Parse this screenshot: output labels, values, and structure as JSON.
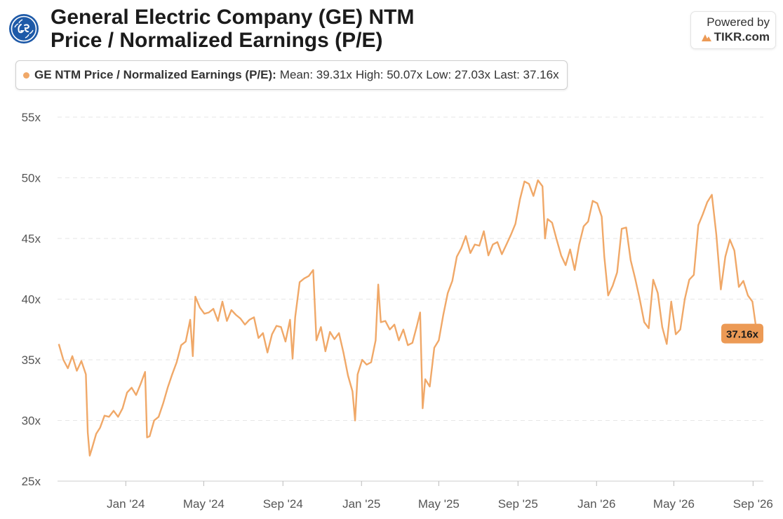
{
  "header": {
    "title_line1": "General Electric Company (GE) NTM",
    "title_line2": "Price / Normalized Earnings (P/E)",
    "powered_by": "Powered by",
    "brand": "TIKR.com"
  },
  "legend": {
    "series_name": "GE NTM Price / Normalized Earnings (P/E):",
    "mean": "Mean: 39.31x",
    "high": "High: 50.07x",
    "low": "Low: 27.03x",
    "last": "Last: 37.16x"
  },
  "colors": {
    "series": "#f0a868",
    "last_badge": "#ec9a55",
    "grid": "#e6e6e6"
  },
  "chart_data": {
    "type": "line",
    "title": "General Electric Company (GE) NTM Price / Normalized Earnings (P/E)",
    "ylim": [
      25,
      55
    ],
    "y_ticks": [
      "25x",
      "30x",
      "35x",
      "40x",
      "45x",
      "50x",
      "55x"
    ],
    "x_ticks": [
      "Jan '24",
      "May '24",
      "Sep '24",
      "Jan '25",
      "May '25",
      "Sep '25",
      "Jan '26",
      "May '26",
      "Sep '26"
    ],
    "x_tick_dates": [
      "2024-01-01",
      "2024-05-01",
      "2024-09-01",
      "2025-01-01",
      "2025-05-01",
      "2025-09-01",
      "2026-01-01",
      "2026-05-01",
      "2026-09-01"
    ],
    "grid": true,
    "last_label": "37.16x",
    "series": [
      {
        "name": "GE NTM Price / Normalized Earnings (P/E)",
        "points": [
          [
            "2023-09-19",
            36.3
          ],
          [
            "2023-09-26",
            35.0
          ],
          [
            "2023-10-03",
            34.3
          ],
          [
            "2023-10-10",
            35.3
          ],
          [
            "2023-10-17",
            34.1
          ],
          [
            "2023-10-24",
            34.9
          ],
          [
            "2023-10-31",
            33.8
          ],
          [
            "2023-11-03",
            29.0
          ],
          [
            "2023-11-06",
            27.1
          ],
          [
            "2023-11-09",
            27.6
          ],
          [
            "2023-11-16",
            28.9
          ],
          [
            "2023-11-22",
            29.4
          ],
          [
            "2023-11-29",
            30.4
          ],
          [
            "2023-12-06",
            30.3
          ],
          [
            "2023-12-13",
            30.8
          ],
          [
            "2023-12-20",
            30.3
          ],
          [
            "2023-12-27",
            31.0
          ],
          [
            "2024-01-03",
            32.3
          ],
          [
            "2024-01-10",
            32.7
          ],
          [
            "2024-01-17",
            32.1
          ],
          [
            "2024-01-24",
            33.0
          ],
          [
            "2024-01-31",
            34.0
          ],
          [
            "2024-02-03",
            28.6
          ],
          [
            "2024-02-07",
            28.7
          ],
          [
            "2024-02-14",
            30.0
          ],
          [
            "2024-02-21",
            30.3
          ],
          [
            "2024-02-28",
            31.4
          ],
          [
            "2024-03-06",
            32.7
          ],
          [
            "2024-03-13",
            33.8
          ],
          [
            "2024-03-20",
            34.8
          ],
          [
            "2024-03-27",
            36.2
          ],
          [
            "2024-04-03",
            36.5
          ],
          [
            "2024-04-10",
            38.3
          ],
          [
            "2024-04-14",
            35.3
          ],
          [
            "2024-04-18",
            40.2
          ],
          [
            "2024-04-25",
            39.3
          ],
          [
            "2024-05-02",
            38.8
          ],
          [
            "2024-05-09",
            38.9
          ],
          [
            "2024-05-16",
            39.2
          ],
          [
            "2024-05-23",
            38.2
          ],
          [
            "2024-05-30",
            39.8
          ],
          [
            "2024-06-06",
            38.2
          ],
          [
            "2024-06-13",
            39.1
          ],
          [
            "2024-06-20",
            38.7
          ],
          [
            "2024-06-27",
            38.4
          ],
          [
            "2024-07-04",
            37.9
          ],
          [
            "2024-07-11",
            38.3
          ],
          [
            "2024-07-18",
            38.5
          ],
          [
            "2024-07-25",
            36.8
          ],
          [
            "2024-08-01",
            37.2
          ],
          [
            "2024-08-08",
            35.6
          ],
          [
            "2024-08-15",
            37.1
          ],
          [
            "2024-08-22",
            37.8
          ],
          [
            "2024-08-29",
            37.7
          ],
          [
            "2024-09-05",
            36.5
          ],
          [
            "2024-09-12",
            38.3
          ],
          [
            "2024-09-16",
            35.1
          ],
          [
            "2024-09-20",
            38.5
          ],
          [
            "2024-09-27",
            41.4
          ],
          [
            "2024-10-04",
            41.7
          ],
          [
            "2024-10-11",
            41.9
          ],
          [
            "2024-10-18",
            42.4
          ],
          [
            "2024-10-23",
            36.6
          ],
          [
            "2024-10-30",
            37.7
          ],
          [
            "2024-11-06",
            35.7
          ],
          [
            "2024-11-13",
            37.3
          ],
          [
            "2024-11-20",
            36.7
          ],
          [
            "2024-11-27",
            37.2
          ],
          [
            "2024-12-04",
            35.6
          ],
          [
            "2024-12-11",
            33.7
          ],
          [
            "2024-12-18",
            32.4
          ],
          [
            "2024-12-22",
            30.0
          ],
          [
            "2024-12-26",
            33.8
          ],
          [
            "2025-01-02",
            35.0
          ],
          [
            "2025-01-09",
            34.6
          ],
          [
            "2025-01-16",
            34.8
          ],
          [
            "2025-01-23",
            36.6
          ],
          [
            "2025-01-27",
            41.2
          ],
          [
            "2025-01-31",
            38.1
          ],
          [
            "2025-02-07",
            38.2
          ],
          [
            "2025-02-14",
            37.5
          ],
          [
            "2025-02-21",
            37.9
          ],
          [
            "2025-02-28",
            36.6
          ],
          [
            "2025-03-07",
            37.5
          ],
          [
            "2025-03-14",
            36.2
          ],
          [
            "2025-03-21",
            36.4
          ],
          [
            "2025-03-28",
            37.8
          ],
          [
            "2025-04-02",
            38.9
          ],
          [
            "2025-04-06",
            31.0
          ],
          [
            "2025-04-10",
            33.4
          ],
          [
            "2025-04-17",
            32.8
          ],
          [
            "2025-04-24",
            36.0
          ],
          [
            "2025-05-01",
            36.6
          ],
          [
            "2025-05-08",
            38.7
          ],
          [
            "2025-05-15",
            40.5
          ],
          [
            "2025-05-22",
            41.5
          ],
          [
            "2025-05-29",
            43.5
          ],
          [
            "2025-06-05",
            44.2
          ],
          [
            "2025-06-12",
            45.2
          ],
          [
            "2025-06-19",
            43.8
          ],
          [
            "2025-06-26",
            44.5
          ],
          [
            "2025-07-03",
            44.4
          ],
          [
            "2025-07-10",
            45.6
          ],
          [
            "2025-07-17",
            43.6
          ],
          [
            "2025-07-24",
            44.5
          ],
          [
            "2025-07-31",
            44.7
          ],
          [
            "2025-08-07",
            43.7
          ],
          [
            "2025-08-14",
            44.5
          ],
          [
            "2025-08-21",
            45.3
          ],
          [
            "2025-08-28",
            46.2
          ],
          [
            "2025-09-04",
            48.2
          ],
          [
            "2025-09-11",
            49.7
          ],
          [
            "2025-09-18",
            49.5
          ],
          [
            "2025-09-25",
            48.5
          ],
          [
            "2025-10-02",
            49.8
          ],
          [
            "2025-10-09",
            49.3
          ],
          [
            "2025-10-13",
            45.0
          ],
          [
            "2025-10-17",
            46.6
          ],
          [
            "2025-10-24",
            46.3
          ],
          [
            "2025-10-31",
            44.9
          ],
          [
            "2025-11-07",
            43.6
          ],
          [
            "2025-11-14",
            42.8
          ],
          [
            "2025-11-21",
            44.1
          ],
          [
            "2025-11-28",
            42.4
          ],
          [
            "2025-12-05",
            44.5
          ],
          [
            "2025-12-12",
            46.0
          ],
          [
            "2025-12-19",
            46.4
          ],
          [
            "2025-12-26",
            48.1
          ],
          [
            "2026-01-02",
            47.9
          ],
          [
            "2026-01-09",
            46.8
          ],
          [
            "2026-01-13",
            43.5
          ],
          [
            "2026-01-19",
            40.3
          ],
          [
            "2026-01-26",
            41.1
          ],
          [
            "2026-02-02",
            42.2
          ],
          [
            "2026-02-09",
            45.8
          ],
          [
            "2026-02-16",
            45.9
          ],
          [
            "2026-02-23",
            43.2
          ],
          [
            "2026-03-02",
            41.7
          ],
          [
            "2026-03-09",
            40.0
          ],
          [
            "2026-03-16",
            38.1
          ],
          [
            "2026-03-23",
            37.6
          ],
          [
            "2026-03-30",
            41.6
          ],
          [
            "2026-04-06",
            40.5
          ],
          [
            "2026-04-13",
            37.7
          ],
          [
            "2026-04-20",
            36.3
          ],
          [
            "2026-04-27",
            39.8
          ],
          [
            "2026-05-04",
            37.1
          ],
          [
            "2026-05-11",
            37.5
          ],
          [
            "2026-05-18",
            40.0
          ],
          [
            "2026-05-25",
            41.6
          ],
          [
            "2026-06-01",
            42.0
          ],
          [
            "2026-06-08",
            46.1
          ],
          [
            "2026-06-15",
            47.0
          ],
          [
            "2026-06-22",
            48.0
          ],
          [
            "2026-06-29",
            48.6
          ],
          [
            "2026-07-06",
            45.3
          ],
          [
            "2026-07-13",
            40.8
          ],
          [
            "2026-07-20",
            43.5
          ],
          [
            "2026-07-27",
            44.9
          ],
          [
            "2026-08-03",
            44.0
          ],
          [
            "2026-08-10",
            41.0
          ],
          [
            "2026-08-17",
            41.5
          ],
          [
            "2026-08-24",
            40.3
          ],
          [
            "2026-08-31",
            39.8
          ],
          [
            "2026-09-07",
            37.16
          ]
        ]
      }
    ]
  }
}
